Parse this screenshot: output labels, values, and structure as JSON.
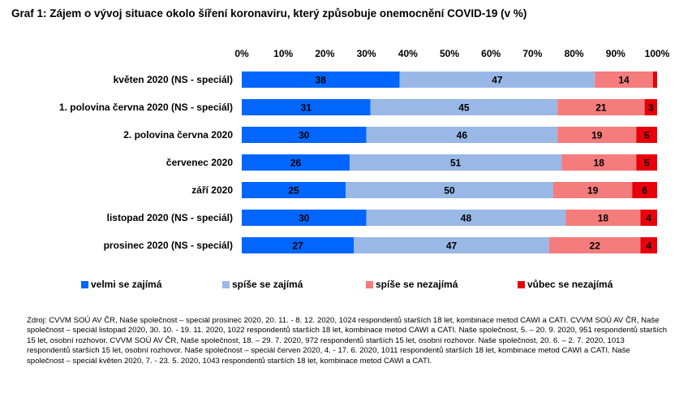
{
  "title": "Graf 1: Zájem o vývoj situace okolo šíření koronaviru, který způsobuje onemocnění COVID-19 (v %)",
  "source_note": "Zdroj: CVVM SOÚ AV ČR, Naše společnost – speciál prosinec 2020, 20. 11. - 8. 12. 2020, 1024 respondentů starších 18 let, kombinace metod CAWI a CATI. CVVM SOÚ AV ČR, Naše společnost – speciál listopad 2020, 30. 10. - 19. 11. 2020, 1022 respondentů starších 18 let, kombinace metod CAWI a CATI. Naše společnost, 5. – 20. 9. 2020, 951 respondentů starších 15 let, osobní rozhovor. CVVM SOÚ AV ČR, Naše společnost, 18. – 29. 7. 2020, 972 respondentů starších 15 let, osobní rozhovor. Naše společnost, 20. 6. – 2. 7. 2020, 1013 respondentů starších 15 let, osobní rozhovor. Naše společnost – speciál červen 2020, 4. - 17. 6. 2020, 1011 respondentů starších 18 let, kombinace metod CAWI a CATI. Naše společnost – speciál květen 2020, 7. - 23. 5. 2020, 1043 respondentů starších 18 let, kombinace metod CAWI a CATI.",
  "chart_data": {
    "type": "bar",
    "orientation": "horizontal",
    "stacked": true,
    "title": "Graf 1: Zájem o vývoj situace okolo šíření koronaviru, který způsobuje onemocnění COVID-19 (v %)",
    "xlabel": "",
    "ylabel": "",
    "xlim": [
      0,
      100
    ],
    "x_ticks": [
      "0%",
      "10%",
      "20%",
      "30%",
      "40%",
      "50%",
      "60%",
      "70%",
      "80%",
      "90%",
      "100%"
    ],
    "x_axis_position": "top",
    "grid": false,
    "legend_position": "bottom",
    "categories": [
      "květen 2020 (NS - speciál)",
      "1. polovina června 2020 (NS - speciál)",
      "2. polovina června 2020",
      "červenec 2020",
      "září 2020",
      "listopad 2020 (NS - speciál)",
      "prosinec 2020 (NS - speciál)"
    ],
    "series": [
      {
        "name": "velmi se zajímá",
        "color": "#0066ff",
        "values": [
          38,
          31,
          30,
          26,
          25,
          30,
          27
        ],
        "labels": [
          "38",
          "31",
          "30",
          "26",
          "25",
          "30",
          "27"
        ]
      },
      {
        "name": "spíše se zajímá",
        "color": "#99b8e6",
        "values": [
          47,
          45,
          46,
          51,
          50,
          48,
          47
        ],
        "labels": [
          "47",
          "45",
          "46",
          "51",
          "50",
          "48",
          "47"
        ]
      },
      {
        "name": "spíše se nezajímá",
        "color": "#f47c7c",
        "values": [
          14,
          21,
          19,
          18,
          19,
          18,
          22
        ],
        "labels": [
          "14",
          "21",
          "19",
          "18",
          "19",
          "18",
          "22"
        ]
      },
      {
        "name": "vůbec se nezajímá",
        "color": "#e8000b",
        "values": [
          1,
          3,
          5,
          5,
          6,
          4,
          4
        ],
        "labels": [
          "",
          "3",
          "5",
          "5",
          "6",
          "4",
          "4"
        ]
      }
    ]
  }
}
